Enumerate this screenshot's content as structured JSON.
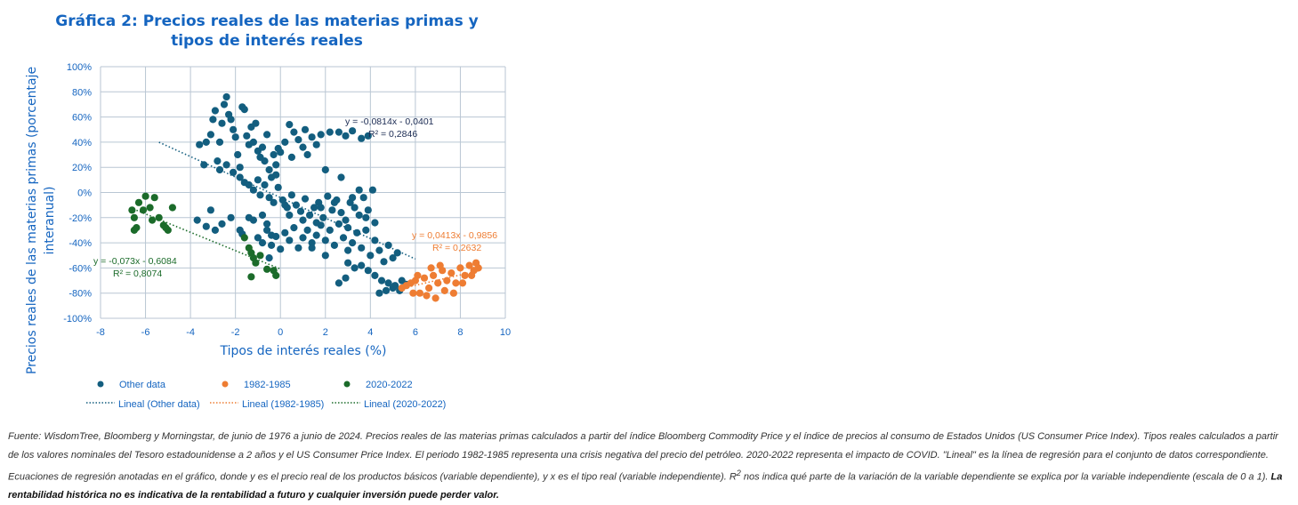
{
  "title_line1": "Gráfica 2: Precios reales de las materias primas y",
  "title_line2": "tipos de interés reales",
  "colors": {
    "other": "#135e7f",
    "y1982": "#ee7d33",
    "y2020": "#1b6b2a",
    "title": "#1565c0",
    "grid": "#b9c6d3"
  },
  "chart_data": {
    "type": "scatter",
    "xlabel": "Tipos de interés reales (%)",
    "ylabel": "Precios reales de las materias primas (porcentaje interanual)",
    "xlim": [
      -8,
      10
    ],
    "ylim": [
      -100,
      100
    ],
    "x_ticks": [
      "-8",
      "-6",
      "-4",
      "-2",
      "0",
      "2",
      "4",
      "6",
      "8",
      "10"
    ],
    "y_ticks": [
      "-100%",
      "-80%",
      "-60%",
      "-40%",
      "-20%",
      "0%",
      "20%",
      "40%",
      "60%",
      "80%",
      "100%"
    ],
    "grid": true,
    "legend_position": "bottom",
    "series": [
      {
        "name": "Other data",
        "key": "other",
        "trendline": {
          "label": "Lineal (Other data)",
          "slope": -0.0814,
          "intercept": -0.0401,
          "x_range": [
            -5.4,
            6.0
          ],
          "equation": "y = -0,0814x - 0,0401",
          "r2": "R² = 0,2846"
        },
        "points": [
          [
            -3.6,
            38
          ],
          [
            -3.4,
            22
          ],
          [
            -3.3,
            40
          ],
          [
            -3.1,
            46
          ],
          [
            -3.0,
            58
          ],
          [
            -2.9,
            65
          ],
          [
            -2.8,
            25
          ],
          [
            -2.7,
            40
          ],
          [
            -2.6,
            55
          ],
          [
            -2.5,
            70
          ],
          [
            -2.4,
            76
          ],
          [
            -2.3,
            62
          ],
          [
            -2.2,
            58
          ],
          [
            -2.1,
            50
          ],
          [
            -2.0,
            44
          ],
          [
            -1.9,
            30
          ],
          [
            -1.8,
            20
          ],
          [
            -1.7,
            68
          ],
          [
            -1.6,
            66
          ],
          [
            -1.5,
            45
          ],
          [
            -1.4,
            38
          ],
          [
            -1.3,
            52
          ],
          [
            -1.2,
            40
          ],
          [
            -1.1,
            55
          ],
          [
            -1.0,
            33
          ],
          [
            -0.9,
            28
          ],
          [
            -0.8,
            36
          ],
          [
            -0.7,
            25
          ],
          [
            -0.6,
            46
          ],
          [
            -0.5,
            18
          ],
          [
            -0.4,
            12
          ],
          [
            -0.3,
            30
          ],
          [
            -0.2,
            22
          ],
          [
            -0.1,
            35
          ],
          [
            0.0,
            32
          ],
          [
            0.2,
            40
          ],
          [
            0.4,
            54
          ],
          [
            0.6,
            48
          ],
          [
            0.8,
            42
          ],
          [
            1.0,
            36
          ],
          [
            1.2,
            30
          ],
          [
            1.4,
            44
          ],
          [
            1.6,
            38
          ],
          [
            1.8,
            46
          ],
          [
            2.2,
            48
          ],
          [
            2.6,
            48
          ],
          [
            2.9,
            45
          ],
          [
            3.2,
            49
          ],
          [
            3.6,
            43
          ],
          [
            3.9,
            45
          ],
          [
            -3.7,
            -22
          ],
          [
            -3.3,
            -27
          ],
          [
            -3.1,
            -14
          ],
          [
            -2.9,
            -30
          ],
          [
            -2.6,
            -25
          ],
          [
            -2.2,
            -20
          ],
          [
            -1.7,
            -33
          ],
          [
            -1.2,
            -22
          ],
          [
            -0.8,
            -18
          ],
          [
            -0.4,
            -34
          ],
          [
            -2.7,
            18
          ],
          [
            -2.4,
            22
          ],
          [
            -2.1,
            16
          ],
          [
            -1.8,
            12
          ],
          [
            -1.6,
            8
          ],
          [
            -1.4,
            6
          ],
          [
            -1.2,
            2
          ],
          [
            -1.0,
            10
          ],
          [
            -0.9,
            -2
          ],
          [
            -0.7,
            6
          ],
          [
            -0.5,
            -4
          ],
          [
            -0.3,
            -8
          ],
          [
            -0.1,
            4
          ],
          [
            0.1,
            -6
          ],
          [
            0.3,
            -12
          ],
          [
            0.5,
            -2
          ],
          [
            0.7,
            -10
          ],
          [
            0.9,
            -15
          ],
          [
            1.1,
            -5
          ],
          [
            1.3,
            -18
          ],
          [
            1.5,
            -12
          ],
          [
            1.7,
            -8
          ],
          [
            1.9,
            -20
          ],
          [
            2.1,
            -3
          ],
          [
            2.3,
            -14
          ],
          [
            2.5,
            -6
          ],
          [
            2.7,
            -16
          ],
          [
            2.9,
            -22
          ],
          [
            3.1,
            -8
          ],
          [
            3.3,
            -12
          ],
          [
            3.5,
            -18
          ],
          [
            3.7,
            -4
          ],
          [
            3.9,
            -14
          ],
          [
            4.1,
            2
          ],
          [
            -1.0,
            -36
          ],
          [
            -0.8,
            -40
          ],
          [
            -0.6,
            -30
          ],
          [
            -0.4,
            -42
          ],
          [
            -0.2,
            -35
          ],
          [
            0.0,
            -45
          ],
          [
            0.2,
            -32
          ],
          [
            0.4,
            -38
          ],
          [
            0.6,
            -28
          ],
          [
            0.8,
            -44
          ],
          [
            1.0,
            -36
          ],
          [
            1.2,
            -30
          ],
          [
            1.4,
            -40
          ],
          [
            1.6,
            -34
          ],
          [
            1.8,
            -26
          ],
          [
            2.0,
            -38
          ],
          [
            2.2,
            -30
          ],
          [
            2.4,
            -42
          ],
          [
            2.6,
            -25
          ],
          [
            2.8,
            -36
          ],
          [
            3.0,
            -28
          ],
          [
            3.2,
            -40
          ],
          [
            3.4,
            -32
          ],
          [
            3.6,
            -44
          ],
          [
            3.8,
            -30
          ],
          [
            4.0,
            -50
          ],
          [
            4.2,
            -38
          ],
          [
            4.4,
            -46
          ],
          [
            4.6,
            -55
          ],
          [
            4.8,
            -42
          ],
          [
            5.0,
            -52
          ],
          [
            5.2,
            -48
          ],
          [
            3.0,
            -56
          ],
          [
            3.3,
            -60
          ],
          [
            3.6,
            -58
          ],
          [
            3.9,
            -62
          ],
          [
            4.2,
            -66
          ],
          [
            4.5,
            -70
          ],
          [
            4.8,
            -72
          ],
          [
            5.1,
            -74
          ],
          [
            5.4,
            -70
          ],
          [
            4.4,
            -80
          ],
          [
            4.7,
            -78
          ],
          [
            5.0,
            -76
          ],
          [
            5.3,
            -78
          ],
          [
            5.6,
            -73
          ],
          [
            2.6,
            -72
          ],
          [
            2.9,
            -68
          ],
          [
            -0.5,
            -52
          ],
          [
            0.4,
            -18
          ],
          [
            1.6,
            -24
          ],
          [
            2.4,
            -8
          ],
          [
            3.0,
            -46
          ],
          [
            -1.4,
            -20
          ],
          [
            2.0,
            18
          ],
          [
            1.1,
            50
          ],
          [
            0.5,
            28
          ],
          [
            -0.6,
            -25
          ],
          [
            1.8,
            -12
          ],
          [
            2.7,
            12
          ],
          [
            3.5,
            2
          ],
          [
            4.2,
            -24
          ],
          [
            3.2,
            -4
          ],
          [
            1.4,
            -44
          ],
          [
            0.2,
            -10
          ],
          [
            -0.2,
            14
          ],
          [
            -1.8,
            -30
          ],
          [
            2.0,
            -50
          ],
          [
            1.0,
            -22
          ],
          [
            3.8,
            -20
          ]
        ]
      },
      {
        "name": "1982-1985",
        "key": "y1982",
        "trendline": {
          "label": "Lineal (1982-1985)",
          "slope": 0.0413,
          "intercept": -0.9856,
          "x_range": [
            5.5,
            8.8
          ],
          "equation": "y = 0,0413x - 0,9856",
          "r2": "R² = 0,2632"
        },
        "points": [
          [
            5.4,
            -76
          ],
          [
            5.6,
            -74
          ],
          [
            5.8,
            -72
          ],
          [
            6.0,
            -70
          ],
          [
            6.2,
            -80
          ],
          [
            6.4,
            -68
          ],
          [
            6.6,
            -76
          ],
          [
            6.8,
            -66
          ],
          [
            7.0,
            -72
          ],
          [
            7.2,
            -62
          ],
          [
            7.4,
            -70
          ],
          [
            7.6,
            -64
          ],
          [
            7.8,
            -72
          ],
          [
            8.0,
            -60
          ],
          [
            8.2,
            -66
          ],
          [
            8.4,
            -58
          ],
          [
            8.6,
            -62
          ],
          [
            8.7,
            -56
          ],
          [
            8.8,
            -60
          ],
          [
            6.5,
            -82
          ],
          [
            6.9,
            -84
          ],
          [
            7.3,
            -78
          ],
          [
            7.7,
            -80
          ],
          [
            8.1,
            -72
          ],
          [
            6.1,
            -66
          ],
          [
            5.9,
            -80
          ],
          [
            7.1,
            -58
          ],
          [
            8.5,
            -66
          ],
          [
            6.7,
            -60
          ]
        ]
      },
      {
        "name": "2020-2022",
        "key": "y2020",
        "trendline": {
          "label": "Lineal (2020-2022)",
          "slope": -0.073,
          "intercept": -0.6084,
          "x_range": [
            -6.4,
            0.0
          ],
          "equation": "y = -0,073x - 0,6084",
          "r2": "R² = 0,8074"
        },
        "points": [
          [
            -6.6,
            -14
          ],
          [
            -6.5,
            -20
          ],
          [
            -6.4,
            -28
          ],
          [
            -6.3,
            -8
          ],
          [
            -6.1,
            -14
          ],
          [
            -6.0,
            -3
          ],
          [
            -5.8,
            -12
          ],
          [
            -5.7,
            -22
          ],
          [
            -5.6,
            -4
          ],
          [
            -5.4,
            -20
          ],
          [
            -5.2,
            -26
          ],
          [
            -5.0,
            -30
          ],
          [
            -4.8,
            -12
          ],
          [
            -5.1,
            -28
          ],
          [
            -6.5,
            -30
          ],
          [
            -1.6,
            -36
          ],
          [
            -1.4,
            -44
          ],
          [
            -1.3,
            -48
          ],
          [
            -1.2,
            -52
          ],
          [
            -1.1,
            -56
          ],
          [
            -0.9,
            -50
          ],
          [
            -0.6,
            -61
          ],
          [
            -0.2,
            -66
          ],
          [
            -1.3,
            -67
          ],
          [
            -0.3,
            -62
          ]
        ]
      }
    ]
  },
  "caption": {
    "main": "Fuente: WisdomTree, Bloomberg y Morningstar, de junio de 1976 a junio de 2024. Precios reales de las materias primas calculados a partir del índice Bloomberg Commodity Price y el índice de precios al consumo de Estados Unidos (US Consumer Price Index). Tipos reales calculados a partir de los valores nominales del Tesoro estadounidense a 2 años y el US Consumer Price Index. El periodo 1982-1985 representa una crisis negativa del precio del petróleo. 2020-2022 representa el impacto de COVID. \"Lineal\" es la línea de regresión para el conjunto de datos correspondiente. Ecuaciones de regresión anotadas en el gráfico, donde y es el precio real de los productos básicos (variable dependiente), y x es el tipo real (variable independiente). R",
    "superscript": "2",
    "after": " nos indica qué parte de la variación de la variable dependiente se explica por la variable independiente (escala de 0 a 1). ",
    "bold": "La rentabilidad histórica no es indicativa de la rentabilidad a futuro y cualquier inversión puede perder valor."
  }
}
